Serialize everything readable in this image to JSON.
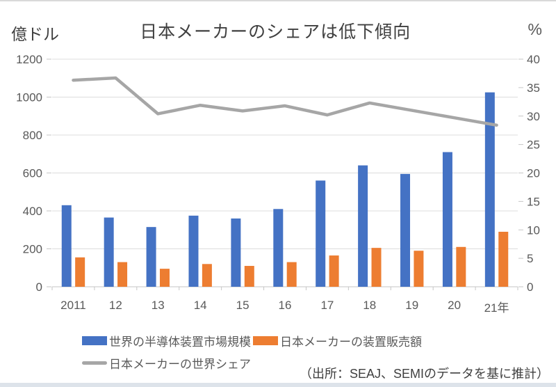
{
  "page": {
    "title": "日本メーカーのシェアは低下傾向",
    "left_axis_unit": "億ドル",
    "right_axis_unit": "%",
    "source": "（出所：SEAJ、SEMIのデータを基に推計）"
  },
  "legend": {
    "world_market": {
      "label": "世界の半導体装置市場規模",
      "color": "#4472C4"
    },
    "japan_sales": {
      "label": "日本メーカーの装置販売額",
      "color": "#ED7D31"
    },
    "japan_share": {
      "label": "日本メーカーの世界シェア",
      "color": "#A6A6A6"
    }
  },
  "colors": {
    "grid": "#dcdcdc",
    "axis": "#c6c6c6",
    "tick_label": "#595959"
  },
  "chart_data": {
    "type": "bar+line combo",
    "title": "日本メーカーのシェアは低下傾向",
    "categories": [
      "2011",
      "12",
      "13",
      "14",
      "15",
      "16",
      "17",
      "18",
      "19",
      "20",
      "21年"
    ],
    "series": [
      {
        "name": "世界の半導体装置市場規模",
        "type": "bar",
        "axis": "left",
        "color": "#4472C4",
        "values": [
          430,
          365,
          315,
          375,
          360,
          410,
          560,
          640,
          595,
          710,
          1025
        ]
      },
      {
        "name": "日本メーカーの装置販売額",
        "type": "bar",
        "axis": "left",
        "color": "#ED7D31",
        "values": [
          155,
          130,
          95,
          120,
          110,
          130,
          165,
          205,
          190,
          210,
          290
        ]
      },
      {
        "name": "日本メーカーの世界シェア",
        "type": "line",
        "axis": "right",
        "color": "#A6A6A6",
        "values": [
          36.3,
          36.7,
          30.4,
          31.9,
          30.9,
          31.8,
          30.2,
          32.3,
          31.0,
          29.7,
          28.4
        ]
      }
    ],
    "left_axis": {
      "label": "億ドル",
      "min": 0,
      "max": 1200,
      "step": 200
    },
    "right_axis": {
      "label": "%",
      "min": 0,
      "max": 40,
      "step": 5
    },
    "grid": true,
    "legend_position": "bottom",
    "source": "（出所：SEAJ、SEMIのデータを基に推計）"
  }
}
